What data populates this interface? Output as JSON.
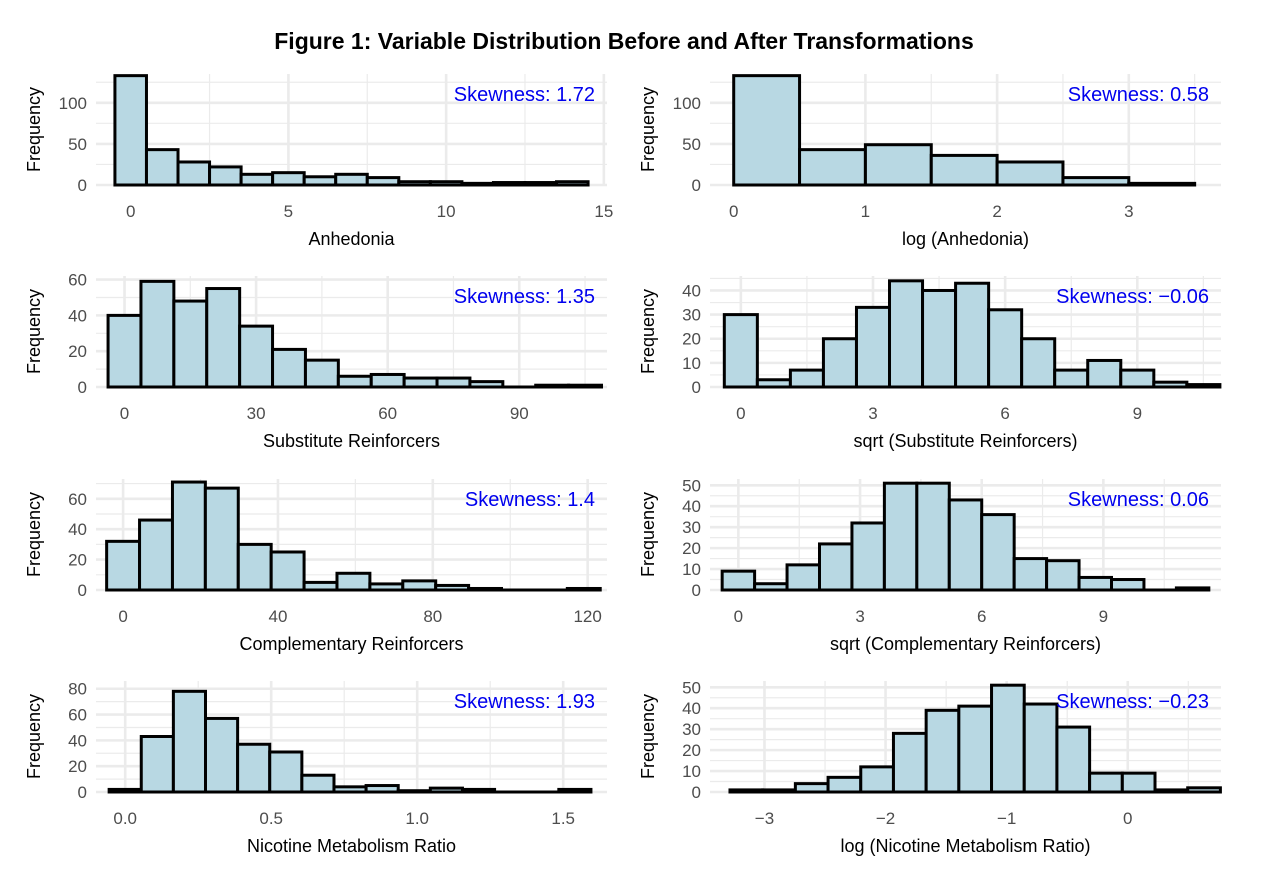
{
  "figure_title": "Figure 1: Variable Distribution Before and After Transformations",
  "colors": {
    "bar_fill": "#b8d8e3",
    "bar_stroke": "#000000",
    "skew_text": "#0000ee",
    "grid": "#ebebeb",
    "tick_text": "#4d4d4d"
  },
  "chart_data": [
    {
      "type": "bar",
      "xlabel": "Anhedonia",
      "ylabel": "Frequency",
      "skewness_label": "Skewness: 1.72",
      "xlim": [
        -1.1,
        15.1
      ],
      "ylim": [
        0,
        135
      ],
      "xticks": [
        0,
        5,
        10,
        15
      ],
      "yticks": [
        0,
        50,
        100
      ],
      "grid": true,
      "bin_width": 1,
      "bin_centers": [
        0,
        1,
        2,
        3,
        4,
        5,
        6,
        7,
        8,
        9,
        10,
        11,
        12,
        13,
        14
      ],
      "values": [
        133,
        43,
        28,
        22,
        13,
        15,
        10,
        13,
        9,
        4,
        4,
        2,
        3,
        3,
        4
      ]
    },
    {
      "type": "bar",
      "xlabel": "log (Anhedonia)",
      "ylabel": "Frequency",
      "skewness_label": "Skewness: 0.58",
      "xlim": [
        -0.18,
        3.7
      ],
      "ylim": [
        0,
        135
      ],
      "xticks": [
        0,
        1,
        2,
        3
      ],
      "yticks": [
        0,
        50,
        100
      ],
      "grid": true,
      "bin_width": 0.5,
      "bin_centers": [
        0.25,
        0.75,
        1.25,
        1.75,
        2.25,
        2.75,
        3.25
      ],
      "values": [
        133,
        43,
        49,
        36,
        28,
        9,
        2
      ]
    },
    {
      "type": "bar",
      "xlabel": "Substitute Reinforcers",
      "ylabel": "Frequency",
      "skewness_label": "Skewness: 1.35",
      "xlim": [
        -6.5,
        110
      ],
      "ylim": [
        0,
        62
      ],
      "xticks": [
        0,
        30,
        60,
        90
      ],
      "yticks": [
        0,
        20,
        40,
        60
      ],
      "grid": true,
      "bin_width": 7.5,
      "bin_centers": [
        0,
        7.5,
        15,
        22.5,
        30,
        37.5,
        45,
        52.5,
        60,
        67.5,
        75,
        82.5,
        90,
        97.5,
        105
      ],
      "values": [
        40,
        59,
        48,
        55,
        34,
        21,
        15,
        6,
        7,
        5,
        5,
        3,
        0,
        1,
        1
      ]
    },
    {
      "type": "bar",
      "xlabel": "sqrt (Substitute Reinforcers)",
      "ylabel": "Frequency",
      "skewness_label": "Skewness: −0.06",
      "xlim": [
        -0.7,
        10.9
      ],
      "ylim": [
        0,
        46
      ],
      "xticks": [
        0,
        3,
        6,
        9
      ],
      "yticks": [
        0,
        10,
        20,
        30,
        40
      ],
      "grid": true,
      "bin_width": 0.75,
      "bin_centers": [
        0,
        0.75,
        1.5,
        2.25,
        3,
        3.75,
        4.5,
        5.25,
        6,
        6.75,
        7.5,
        8.25,
        9,
        9.75,
        10.5
      ],
      "values": [
        30,
        3,
        7,
        20,
        33,
        44,
        40,
        43,
        32,
        20,
        7,
        11,
        7,
        2,
        1
      ]
    },
    {
      "type": "bar",
      "xlabel": "Complementary Reinforcers",
      "ylabel": "Frequency",
      "skewness_label": "Skewness: 1.4",
      "xlim": [
        -7,
        125
      ],
      "ylim": [
        0,
        73
      ],
      "xticks": [
        0,
        40,
        80,
        120
      ],
      "yticks": [
        0,
        20,
        40,
        60
      ],
      "grid": true,
      "bin_width": 8.5,
      "bin_centers": [
        0,
        8.5,
        17,
        25.5,
        34,
        42.5,
        51,
        59.5,
        68,
        76.5,
        85,
        93.5,
        102,
        110.5,
        119
      ],
      "values": [
        32,
        46,
        71,
        67,
        30,
        25,
        5,
        11,
        4,
        6,
        3,
        1,
        0,
        0,
        1
      ]
    },
    {
      "type": "bar",
      "xlabel": "sqrt (Complementary Reinforcers)",
      "ylabel": "Frequency",
      "skewness_label": "Skewness: 0.06",
      "xlim": [
        -0.7,
        11.9
      ],
      "ylim": [
        0,
        53
      ],
      "xticks": [
        0,
        3,
        6,
        9
      ],
      "yticks": [
        0,
        10,
        20,
        30,
        40,
        50
      ],
      "grid": true,
      "bin_width": 0.8,
      "bin_centers": [
        0,
        0.8,
        1.6,
        2.4,
        3.2,
        4,
        4.8,
        5.6,
        6.4,
        7.2,
        8,
        8.8,
        9.6,
        10.4,
        11.2
      ],
      "values": [
        9,
        3,
        12,
        22,
        32,
        51,
        51,
        43,
        36,
        15,
        14,
        6,
        5,
        0,
        1
      ]
    },
    {
      "type": "bar",
      "xlabel": "Nicotine Metabolism Ratio",
      "ylabel": "Frequency",
      "skewness_label": "Skewness: 1.93",
      "xlim": [
        -0.1,
        1.65
      ],
      "ylim": [
        0,
        86
      ],
      "xticks": [
        0.0,
        0.5,
        1.0,
        1.5
      ],
      "yticks": [
        0,
        20,
        40,
        60,
        80
      ],
      "grid": true,
      "bin_width": 0.11,
      "bin_centers": [
        0,
        0.11,
        0.22,
        0.33,
        0.44,
        0.55,
        0.66,
        0.77,
        0.88,
        0.99,
        1.1,
        1.21,
        1.32,
        1.43,
        1.54
      ],
      "values": [
        2,
        43,
        78,
        57,
        37,
        31,
        13,
        4,
        5,
        1,
        3,
        2,
        0,
        0,
        2
      ]
    },
    {
      "type": "bar",
      "xlabel": "log (Nicotine Metabolism Ratio)",
      "ylabel": "Frequency",
      "skewness_label": "Skewness: −0.23",
      "xlim": [
        -3.45,
        0.77
      ],
      "ylim": [
        0,
        53
      ],
      "xticks": [
        -3,
        -2,
        -1,
        0
      ],
      "yticks": [
        0,
        10,
        20,
        30,
        40,
        50
      ],
      "grid": true,
      "bin_width": 0.27,
      "bin_centers": [
        -3.15,
        -2.88,
        -2.61,
        -2.34,
        -2.07,
        -1.8,
        -1.53,
        -1.26,
        -0.99,
        -0.72,
        -0.45,
        -0.18,
        0.09,
        0.36,
        0.63
      ],
      "values": [
        1,
        1,
        4,
        7,
        12,
        28,
        39,
        41,
        51,
        42,
        31,
        9,
        9,
        1,
        2
      ]
    }
  ]
}
